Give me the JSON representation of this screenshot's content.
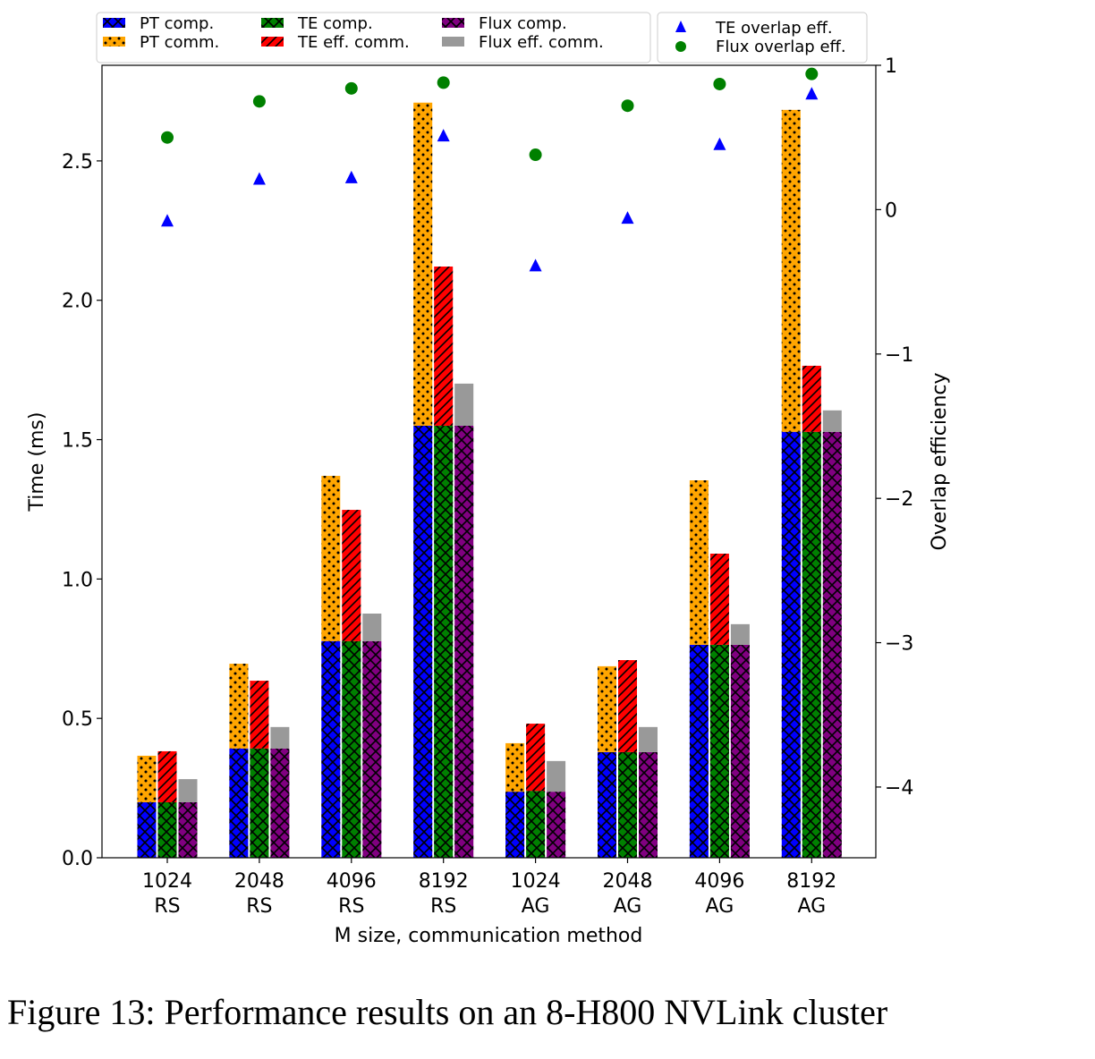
{
  "chart_data": {
    "type": "bar",
    "xlabel": "M size, communication method",
    "ylabel": "Time (ms)",
    "y2label": "Overlap efficiency",
    "ylim": [
      0,
      2.843
    ],
    "y2lim": [
      -4.49,
      1
    ],
    "yticks": [
      "0.0",
      "0.5",
      "1.0",
      "1.5",
      "2.0",
      "2.5"
    ],
    "y2ticks": [
      "1",
      "0",
      "−1",
      "−2",
      "−3",
      "−4"
    ],
    "categories": [
      [
        "1024",
        "RS"
      ],
      [
        "2048",
        "RS"
      ],
      [
        "4096",
        "RS"
      ],
      [
        "8192",
        "RS"
      ],
      [
        "1024",
        "AG"
      ],
      [
        "2048",
        "AG"
      ],
      [
        "4096",
        "AG"
      ],
      [
        "8192",
        "AG"
      ]
    ],
    "series": [
      {
        "name": "PT comp.",
        "color": "#0000ff",
        "pattern": "crosshatch",
        "stack": "PT",
        "values": [
          0.199,
          0.392,
          0.777,
          1.55,
          0.237,
          0.379,
          0.764,
          1.528
        ]
      },
      {
        "name": "PT comm.",
        "color": "#ffa500",
        "pattern": "dots",
        "stack": "PT",
        "values": [
          0.167,
          0.304,
          0.593,
          1.159,
          0.174,
          0.308,
          0.59,
          1.155
        ]
      },
      {
        "name": "TE comp.",
        "color": "#008000",
        "pattern": "crosshatch",
        "stack": "TE",
        "values": [
          0.199,
          0.392,
          0.777,
          1.55,
          0.24,
          0.379,
          0.764,
          1.528
        ]
      },
      {
        "name": "TE eff. comm.",
        "color": "#ff0000",
        "pattern": "diagonal",
        "stack": "TE",
        "values": [
          0.183,
          0.243,
          0.471,
          0.571,
          0.241,
          0.33,
          0.327,
          0.237
        ]
      },
      {
        "name": "Flux comp.",
        "color": "#800080",
        "pattern": "crosshatch",
        "stack": "Flux",
        "values": [
          0.199,
          0.392,
          0.777,
          1.55,
          0.237,
          0.379,
          0.764,
          1.528
        ]
      },
      {
        "name": "Flux eff. comm.",
        "color": "#999999",
        "pattern": "solid",
        "stack": "Flux",
        "values": [
          0.083,
          0.077,
          0.099,
          0.151,
          0.11,
          0.09,
          0.074,
          0.077
        ]
      }
    ],
    "scatter_series": [
      {
        "name": "TE overlap eff.",
        "color": "#0000ff",
        "marker": "triangle",
        "axis": "right",
        "values": [
          -0.08,
          0.21,
          0.22,
          0.51,
          -0.39,
          -0.06,
          0.45,
          0.8
        ]
      },
      {
        "name": "Flux overlap eff.",
        "color": "#008000",
        "marker": "circle",
        "axis": "right",
        "values": [
          0.5,
          0.75,
          0.84,
          0.88,
          0.38,
          0.72,
          0.87,
          0.94
        ]
      }
    ],
    "legend": "top (two boxes above plot)",
    "grid": false
  },
  "caption": "Figure 13: Performance results on an 8-H800 NVLink cluster"
}
